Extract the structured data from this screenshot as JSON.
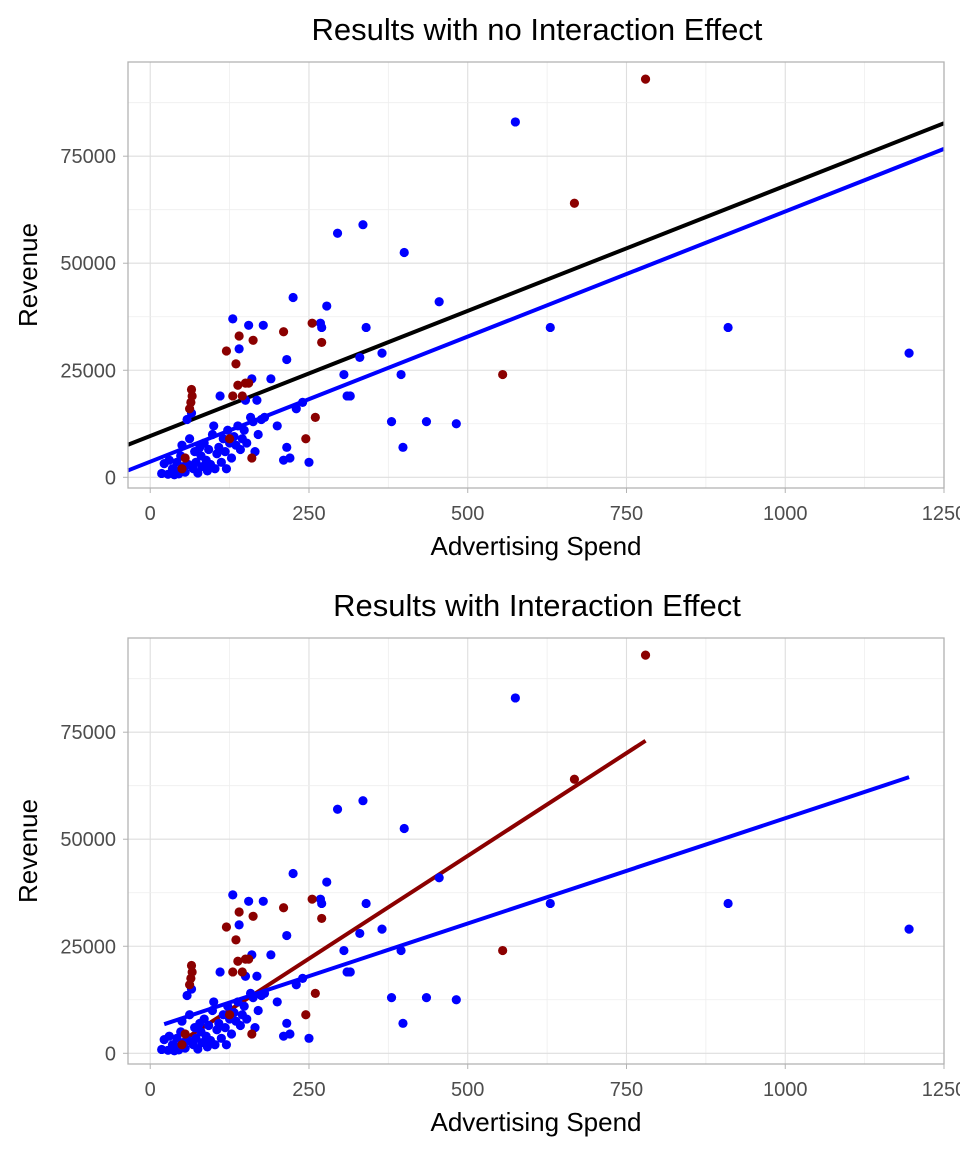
{
  "chart_data": [
    {
      "type": "scatter",
      "title": "Results with no Interaction Effect",
      "xlabel": "Advertising Spend",
      "ylabel": "Revenue",
      "xlim": [
        -35,
        1250
      ],
      "ylim": [
        -2500,
        97000
      ],
      "xticks": [
        0,
        250,
        500,
        750,
        1000,
        1250
      ],
      "xtick_labels": [
        "0",
        "250",
        "500",
        "750",
        "1000",
        "1250"
      ],
      "yticks": [
        0,
        25000,
        50000,
        75000
      ],
      "ytick_labels": [
        "0",
        "25000",
        "50000",
        "75000"
      ],
      "grid": true,
      "series": [
        {
          "name": "group-blue",
          "color": "#0000ff",
          "points": [
            [
              18,
              900
            ],
            [
              22,
              3200
            ],
            [
              28,
              700
            ],
            [
              30,
              4000
            ],
            [
              35,
              2000
            ],
            [
              38,
              600
            ],
            [
              40,
              1500
            ],
            [
              42,
              3500
            ],
            [
              45,
              800
            ],
            [
              48,
              5000
            ],
            [
              50,
              7500
            ],
            [
              52,
              2500
            ],
            [
              55,
              1200
            ],
            [
              58,
              13500
            ],
            [
              60,
              3000
            ],
            [
              62,
              9000
            ],
            [
              65,
              15000
            ],
            [
              68,
              2000
            ],
            [
              70,
              6000
            ],
            [
              72,
              3500
            ],
            [
              75,
              1000
            ],
            [
              78,
              7000
            ],
            [
              80,
              5000
            ],
            [
              82,
              2500
            ],
            [
              85,
              8000
            ],
            [
              88,
              4000
            ],
            [
              90,
              1500
            ],
            [
              92,
              6500
            ],
            [
              95,
              3000
            ],
            [
              98,
              10000
            ],
            [
              100,
              12000
            ],
            [
              102,
              2000
            ],
            [
              105,
              5500
            ],
            [
              108,
              7000
            ],
            [
              110,
              19000
            ],
            [
              112,
              3500
            ],
            [
              115,
              9000
            ],
            [
              118,
              6000
            ],
            [
              120,
              2000
            ],
            [
              122,
              11000
            ],
            [
              125,
              8000
            ],
            [
              128,
              4500
            ],
            [
              130,
              37000
            ],
            [
              132,
              9500
            ],
            [
              135,
              7500
            ],
            [
              138,
              12000
            ],
            [
              140,
              30000
            ],
            [
              142,
              6500
            ],
            [
              145,
              9000
            ],
            [
              148,
              11000
            ],
            [
              150,
              18000
            ],
            [
              152,
              8000
            ],
            [
              155,
              35500
            ],
            [
              158,
              14000
            ],
            [
              160,
              23000
            ],
            [
              162,
              13000
            ],
            [
              165,
              6000
            ],
            [
              168,
              18000
            ],
            [
              170,
              10000
            ],
            [
              175,
              13500
            ],
            [
              178,
              35500
            ],
            [
              180,
              14000
            ],
            [
              190,
              23000
            ],
            [
              200,
              12000
            ],
            [
              210,
              4000
            ],
            [
              215,
              7000
            ],
            [
              215,
              27500
            ],
            [
              220,
              4500
            ],
            [
              225,
              42000
            ],
            [
              230,
              16000
            ],
            [
              240,
              17500
            ],
            [
              250,
              3500
            ],
            [
              268,
              36000
            ],
            [
              270,
              35000
            ],
            [
              278,
              40000
            ],
            [
              295,
              57000
            ],
            [
              305,
              24000
            ],
            [
              310,
              19000
            ],
            [
              315,
              19000
            ],
            [
              330,
              28000
            ],
            [
              335,
              59000
            ],
            [
              340,
              35000
            ],
            [
              365,
              29000
            ],
            [
              380,
              13000
            ],
            [
              395,
              24000
            ],
            [
              398,
              7000
            ],
            [
              400,
              52500
            ],
            [
              435,
              13000
            ],
            [
              455,
              41000
            ],
            [
              482,
              12500
            ],
            [
              575,
              83000
            ],
            [
              630,
              35000
            ],
            [
              910,
              35000
            ],
            [
              1195,
              29000
            ]
          ]
        },
        {
          "name": "group-red",
          "color": "#8b0000",
          "points": [
            [
              50,
              2000
            ],
            [
              55,
              4500
            ],
            [
              62,
              16000
            ],
            [
              64,
              17500
            ],
            [
              65,
              20500
            ],
            [
              66,
              19000
            ],
            [
              120,
              29500
            ],
            [
              125,
              9000
            ],
            [
              130,
              19000
            ],
            [
              135,
              26500
            ],
            [
              138,
              21500
            ],
            [
              140,
              33000
            ],
            [
              145,
              19000
            ],
            [
              150,
              22000
            ],
            [
              155,
              22000
            ],
            [
              160,
              4500
            ],
            [
              162,
              32000
            ],
            [
              210,
              34000
            ],
            [
              245,
              9000
            ],
            [
              255,
              36000
            ],
            [
              260,
              14000
            ],
            [
              270,
              31500
            ],
            [
              555,
              24000
            ],
            [
              668,
              64000
            ],
            [
              780,
              93000
            ]
          ]
        }
      ],
      "lines": [
        {
          "name": "overall-fit",
          "color": "#000000",
          "x": [
            -35,
            1250
          ],
          "y": [
            7600,
            82700
          ]
        },
        {
          "name": "blue-fit",
          "color": "#0000ff",
          "x": [
            -35,
            1250
          ],
          "y": [
            1600,
            76700
          ]
        }
      ]
    },
    {
      "type": "scatter",
      "title": "Results with Interaction Effect",
      "xlabel": "Advertising Spend",
      "ylabel": "Revenue",
      "xlim": [
        -35,
        1250
      ],
      "ylim": [
        -2500,
        97000
      ],
      "xticks": [
        0,
        250,
        500,
        750,
        1000,
        1250
      ],
      "xtick_labels": [
        "0",
        "250",
        "500",
        "750",
        "1000",
        "1250"
      ],
      "yticks": [
        0,
        25000,
        50000,
        75000
      ],
      "ytick_labels": [
        "0",
        "25000",
        "50000",
        "75000"
      ],
      "grid": true,
      "series": [
        {
          "name": "group-blue",
          "color": "#0000ff",
          "points": [
            [
              18,
              900
            ],
            [
              22,
              3200
            ],
            [
              28,
              700
            ],
            [
              30,
              4000
            ],
            [
              35,
              2000
            ],
            [
              38,
              600
            ],
            [
              40,
              1500
            ],
            [
              42,
              3500
            ],
            [
              45,
              800
            ],
            [
              48,
              5000
            ],
            [
              50,
              7500
            ],
            [
              52,
              2500
            ],
            [
              55,
              1200
            ],
            [
              58,
              13500
            ],
            [
              60,
              3000
            ],
            [
              62,
              9000
            ],
            [
              65,
              15000
            ],
            [
              68,
              2000
            ],
            [
              70,
              6000
            ],
            [
              72,
              3500
            ],
            [
              75,
              1000
            ],
            [
              78,
              7000
            ],
            [
              80,
              5000
            ],
            [
              82,
              2500
            ],
            [
              85,
              8000
            ],
            [
              88,
              4000
            ],
            [
              90,
              1500
            ],
            [
              92,
              6500
            ],
            [
              95,
              3000
            ],
            [
              98,
              10000
            ],
            [
              100,
              12000
            ],
            [
              102,
              2000
            ],
            [
              105,
              5500
            ],
            [
              108,
              7000
            ],
            [
              110,
              19000
            ],
            [
              112,
              3500
            ],
            [
              115,
              9000
            ],
            [
              118,
              6000
            ],
            [
              120,
              2000
            ],
            [
              122,
              11000
            ],
            [
              125,
              8000
            ],
            [
              128,
              4500
            ],
            [
              130,
              37000
            ],
            [
              132,
              9500
            ],
            [
              135,
              7500
            ],
            [
              138,
              12000
            ],
            [
              140,
              30000
            ],
            [
              142,
              6500
            ],
            [
              145,
              9000
            ],
            [
              148,
              11000
            ],
            [
              150,
              18000
            ],
            [
              152,
              8000
            ],
            [
              155,
              35500
            ],
            [
              158,
              14000
            ],
            [
              160,
              23000
            ],
            [
              162,
              13000
            ],
            [
              165,
              6000
            ],
            [
              168,
              18000
            ],
            [
              170,
              10000
            ],
            [
              175,
              13500
            ],
            [
              178,
              35500
            ],
            [
              180,
              14000
            ],
            [
              190,
              23000
            ],
            [
              200,
              12000
            ],
            [
              210,
              4000
            ],
            [
              215,
              7000
            ],
            [
              215,
              27500
            ],
            [
              220,
              4500
            ],
            [
              225,
              42000
            ],
            [
              230,
              16000
            ],
            [
              240,
              17500
            ],
            [
              250,
              3500
            ],
            [
              268,
              36000
            ],
            [
              270,
              35000
            ],
            [
              278,
              40000
            ],
            [
              295,
              57000
            ],
            [
              305,
              24000
            ],
            [
              310,
              19000
            ],
            [
              315,
              19000
            ],
            [
              330,
              28000
            ],
            [
              335,
              59000
            ],
            [
              340,
              35000
            ],
            [
              365,
              29000
            ],
            [
              380,
              13000
            ],
            [
              395,
              24000
            ],
            [
              398,
              7000
            ],
            [
              400,
              52500
            ],
            [
              435,
              13000
            ],
            [
              455,
              41000
            ],
            [
              482,
              12500
            ],
            [
              575,
              83000
            ],
            [
              630,
              35000
            ],
            [
              910,
              35000
            ],
            [
              1195,
              29000
            ]
          ]
        },
        {
          "name": "group-red",
          "color": "#8b0000",
          "points": [
            [
              50,
              2000
            ],
            [
              55,
              4500
            ],
            [
              62,
              16000
            ],
            [
              64,
              17500
            ],
            [
              65,
              20500
            ],
            [
              66,
              19000
            ],
            [
              120,
              29500
            ],
            [
              125,
              9000
            ],
            [
              130,
              19000
            ],
            [
              135,
              26500
            ],
            [
              138,
              21500
            ],
            [
              140,
              33000
            ],
            [
              145,
              19000
            ],
            [
              150,
              22000
            ],
            [
              155,
              22000
            ],
            [
              160,
              4500
            ],
            [
              162,
              32000
            ],
            [
              210,
              34000
            ],
            [
              245,
              9000
            ],
            [
              255,
              36000
            ],
            [
              260,
              14000
            ],
            [
              270,
              31500
            ],
            [
              555,
              24000
            ],
            [
              668,
              64000
            ],
            [
              780,
              93000
            ]
          ]
        }
      ],
      "lines": [
        {
          "name": "red-fit",
          "color": "#8b0000",
          "x": [
            48,
            780
          ],
          "y": [
            2700,
            73000
          ]
        },
        {
          "name": "blue-fit",
          "color": "#0000ff",
          "x": [
            22,
            1195
          ],
          "y": [
            6800,
            64500
          ]
        }
      ]
    }
  ]
}
